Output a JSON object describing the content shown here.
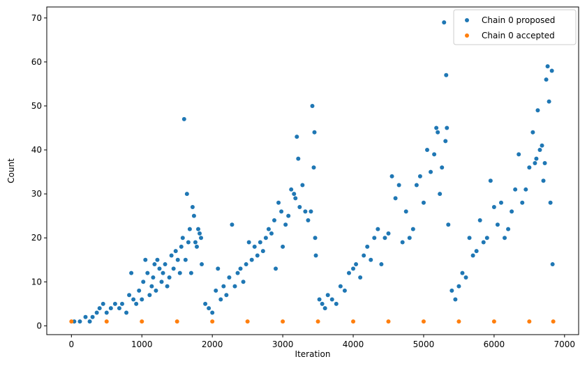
{
  "chart_data": {
    "type": "scatter",
    "title": "",
    "xlabel": "Iteration",
    "ylabel": "Count",
    "xlim": [
      -350,
      7200
    ],
    "ylim": [
      -2,
      72.5
    ],
    "xticks": [
      0,
      1000,
      2000,
      3000,
      4000,
      5000,
      6000,
      7000
    ],
    "yticks": [
      0,
      10,
      20,
      30,
      40,
      50,
      60,
      70
    ],
    "grid": false,
    "legend_position": "top-right",
    "series": [
      {
        "name": "Chain 0 proposed",
        "color": "#1f77b4",
        "points": [
          [
            40,
            1
          ],
          [
            120,
            1
          ],
          [
            200,
            2
          ],
          [
            260,
            1
          ],
          [
            300,
            2
          ],
          [
            360,
            3
          ],
          [
            400,
            4
          ],
          [
            450,
            5
          ],
          [
            500,
            3
          ],
          [
            560,
            4
          ],
          [
            620,
            5
          ],
          [
            680,
            4
          ],
          [
            720,
            5
          ],
          [
            780,
            3
          ],
          [
            820,
            7
          ],
          [
            850,
            12
          ],
          [
            880,
            6
          ],
          [
            920,
            5
          ],
          [
            960,
            8
          ],
          [
            1000,
            6
          ],
          [
            1020,
            10
          ],
          [
            1050,
            15
          ],
          [
            1080,
            12
          ],
          [
            1110,
            7
          ],
          [
            1140,
            9
          ],
          [
            1160,
            11
          ],
          [
            1180,
            14
          ],
          [
            1200,
            8
          ],
          [
            1220,
            15
          ],
          [
            1250,
            13
          ],
          [
            1280,
            10
          ],
          [
            1300,
            12
          ],
          [
            1330,
            14
          ],
          [
            1360,
            9
          ],
          [
            1390,
            11
          ],
          [
            1420,
            16
          ],
          [
            1450,
            13
          ],
          [
            1480,
            17
          ],
          [
            1510,
            15
          ],
          [
            1540,
            12
          ],
          [
            1560,
            18
          ],
          [
            1580,
            20
          ],
          [
            1600,
            47
          ],
          [
            1620,
            15
          ],
          [
            1640,
            30
          ],
          [
            1660,
            19
          ],
          [
            1680,
            22
          ],
          [
            1700,
            12
          ],
          [
            1720,
            27
          ],
          [
            1740,
            25
          ],
          [
            1760,
            19
          ],
          [
            1780,
            18
          ],
          [
            1800,
            22
          ],
          [
            1820,
            21
          ],
          [
            1840,
            20
          ],
          [
            1850,
            14
          ],
          [
            1900,
            5
          ],
          [
            1950,
            4
          ],
          [
            2000,
            3
          ],
          [
            2050,
            8
          ],
          [
            2080,
            13
          ],
          [
            2120,
            6
          ],
          [
            2160,
            9
          ],
          [
            2200,
            7
          ],
          [
            2240,
            11
          ],
          [
            2280,
            23
          ],
          [
            2320,
            9
          ],
          [
            2360,
            12
          ],
          [
            2400,
            13
          ],
          [
            2440,
            10
          ],
          [
            2480,
            14
          ],
          [
            2520,
            19
          ],
          [
            2560,
            15
          ],
          [
            2600,
            18
          ],
          [
            2640,
            16
          ],
          [
            2680,
            19
          ],
          [
            2720,
            17
          ],
          [
            2760,
            20
          ],
          [
            2800,
            22
          ],
          [
            2840,
            21
          ],
          [
            2880,
            24
          ],
          [
            2900,
            13
          ],
          [
            2940,
            28
          ],
          [
            2980,
            26
          ],
          [
            3000,
            18
          ],
          [
            3040,
            23
          ],
          [
            3080,
            25
          ],
          [
            3120,
            31
          ],
          [
            3160,
            30
          ],
          [
            3180,
            29
          ],
          [
            3200,
            43
          ],
          [
            3220,
            38
          ],
          [
            3240,
            27
          ],
          [
            3280,
            32
          ],
          [
            3320,
            26
          ],
          [
            3360,
            24
          ],
          [
            3400,
            26
          ],
          [
            3420,
            50
          ],
          [
            3440,
            36
          ],
          [
            3450,
            44
          ],
          [
            3460,
            20
          ],
          [
            3470,
            16
          ],
          [
            3520,
            6
          ],
          [
            3560,
            5
          ],
          [
            3600,
            4
          ],
          [
            3640,
            7
          ],
          [
            3700,
            6
          ],
          [
            3760,
            5
          ],
          [
            3820,
            9
          ],
          [
            3880,
            8
          ],
          [
            3940,
            12
          ],
          [
            4000,
            13
          ],
          [
            4040,
            14
          ],
          [
            4100,
            11
          ],
          [
            4150,
            16
          ],
          [
            4200,
            18
          ],
          [
            4250,
            15
          ],
          [
            4300,
            20
          ],
          [
            4350,
            22
          ],
          [
            4400,
            14
          ],
          [
            4450,
            20
          ],
          [
            4500,
            21
          ],
          [
            4550,
            34
          ],
          [
            4600,
            29
          ],
          [
            4650,
            32
          ],
          [
            4700,
            19
          ],
          [
            4750,
            26
          ],
          [
            4800,
            20
          ],
          [
            4850,
            22
          ],
          [
            4900,
            32
          ],
          [
            4950,
            34
          ],
          [
            5000,
            28
          ],
          [
            5050,
            40
          ],
          [
            5100,
            35
          ],
          [
            5150,
            39
          ],
          [
            5180,
            45
          ],
          [
            5200,
            44
          ],
          [
            5230,
            30
          ],
          [
            5260,
            36
          ],
          [
            5290,
            69
          ],
          [
            5310,
            42
          ],
          [
            5320,
            57
          ],
          [
            5330,
            45
          ],
          [
            5350,
            23
          ],
          [
            5400,
            8
          ],
          [
            5450,
            6
          ],
          [
            5500,
            9
          ],
          [
            5550,
            12
          ],
          [
            5600,
            11
          ],
          [
            5650,
            20
          ],
          [
            5700,
            16
          ],
          [
            5750,
            17
          ],
          [
            5800,
            24
          ],
          [
            5850,
            19
          ],
          [
            5900,
            20
          ],
          [
            5950,
            33
          ],
          [
            6000,
            27
          ],
          [
            6050,
            23
          ],
          [
            6100,
            28
          ],
          [
            6150,
            20
          ],
          [
            6200,
            22
          ],
          [
            6250,
            26
          ],
          [
            6300,
            31
          ],
          [
            6350,
            39
          ],
          [
            6400,
            28
          ],
          [
            6450,
            31
          ],
          [
            6500,
            36
          ],
          [
            6550,
            44
          ],
          [
            6580,
            37
          ],
          [
            6600,
            38
          ],
          [
            6620,
            49
          ],
          [
            6650,
            40
          ],
          [
            6680,
            41
          ],
          [
            6700,
            33
          ],
          [
            6720,
            37
          ],
          [
            6740,
            56
          ],
          [
            6760,
            59
          ],
          [
            6780,
            51
          ],
          [
            6800,
            28
          ],
          [
            6820,
            58
          ],
          [
            6830,
            14
          ]
        ]
      },
      {
        "name": "Chain 0 accepted",
        "color": "#ff7f0e",
        "points": [
          [
            0,
            1
          ],
          [
            500,
            1
          ],
          [
            1000,
            1
          ],
          [
            1500,
            1
          ],
          [
            2000,
            1
          ],
          [
            2500,
            1
          ],
          [
            3000,
            1
          ],
          [
            3500,
            1
          ],
          [
            4000,
            1
          ],
          [
            4500,
            1
          ],
          [
            5000,
            1
          ],
          [
            5500,
            1
          ],
          [
            6000,
            1
          ],
          [
            6500,
            1
          ],
          [
            6840,
            1
          ]
        ]
      }
    ]
  }
}
